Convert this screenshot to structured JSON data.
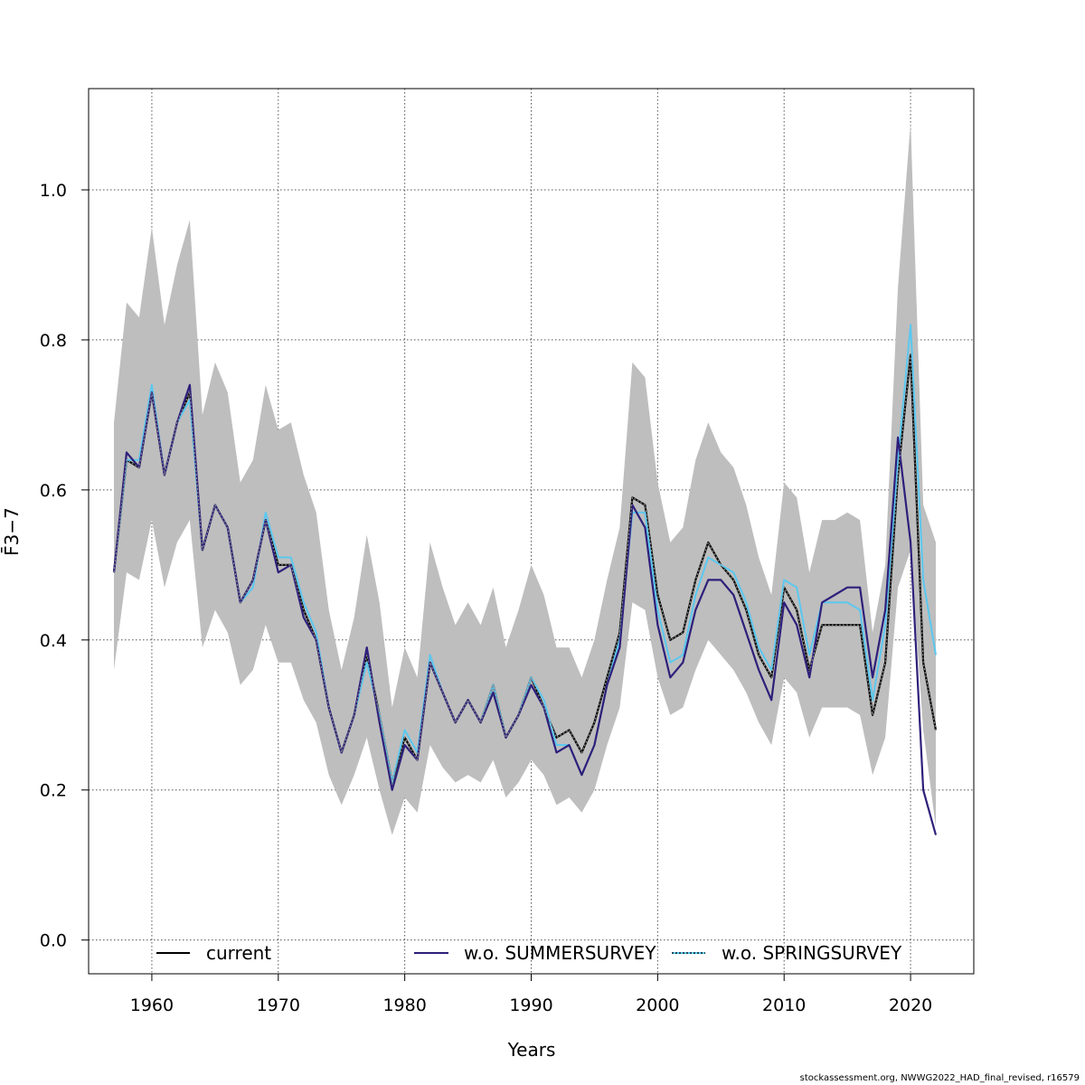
{
  "chart_data": {
    "type": "line",
    "xlabel": "Years",
    "ylabel": "F̄3−7",
    "xlim": [
      1955,
      2025
    ],
    "ylim": [
      -0.045,
      1.135
    ],
    "x_ticks": [
      1960,
      1970,
      1980,
      1990,
      2000,
      2010,
      2020
    ],
    "x_tick_labels": [
      "1960",
      "1970",
      "1980",
      "1990",
      "2000",
      "2010",
      "2020"
    ],
    "y_ticks": [
      0.0,
      0.2,
      0.4,
      0.6,
      0.8,
      1.0
    ],
    "y_tick_labels": [
      "0.0",
      "0.2",
      "0.4",
      "0.6",
      "0.8",
      "1.0"
    ],
    "grid": true,
    "legend_position": "bottom",
    "x": [
      1957,
      1958,
      1959,
      1960,
      1961,
      1962,
      1963,
      1964,
      1965,
      1966,
      1967,
      1968,
      1969,
      1970,
      1971,
      1972,
      1973,
      1974,
      1975,
      1976,
      1977,
      1978,
      1979,
      1980,
      1981,
      1982,
      1983,
      1984,
      1985,
      1986,
      1987,
      1988,
      1989,
      1990,
      1991,
      1992,
      1993,
      1994,
      1995,
      1996,
      1997,
      1998,
      1999,
      2000,
      2001,
      2002,
      2003,
      2004,
      2005,
      2006,
      2007,
      2008,
      2009,
      2010,
      2011,
      2012,
      2013,
      2014,
      2015,
      2016,
      2017,
      2018,
      2019,
      2020,
      2021,
      2022
    ],
    "band": {
      "fill": "#bebebe",
      "lower": [
        0.36,
        0.49,
        0.48,
        0.56,
        0.47,
        0.53,
        0.56,
        0.39,
        0.44,
        0.41,
        0.34,
        0.36,
        0.42,
        0.37,
        0.37,
        0.32,
        0.29,
        0.22,
        0.18,
        0.22,
        0.27,
        0.2,
        0.14,
        0.19,
        0.17,
        0.26,
        0.23,
        0.21,
        0.22,
        0.21,
        0.24,
        0.19,
        0.21,
        0.24,
        0.22,
        0.18,
        0.19,
        0.17,
        0.2,
        0.26,
        0.31,
        0.45,
        0.44,
        0.35,
        0.3,
        0.31,
        0.36,
        0.4,
        0.38,
        0.36,
        0.33,
        0.29,
        0.26,
        0.35,
        0.33,
        0.27,
        0.31,
        0.31,
        0.31,
        0.3,
        0.22,
        0.27,
        0.47,
        0.52,
        0.28,
        0.15
      ],
      "upper": [
        0.69,
        0.85,
        0.83,
        0.95,
        0.82,
        0.9,
        0.96,
        0.7,
        0.77,
        0.73,
        0.61,
        0.64,
        0.74,
        0.68,
        0.69,
        0.62,
        0.57,
        0.44,
        0.36,
        0.43,
        0.54,
        0.45,
        0.31,
        0.39,
        0.35,
        0.53,
        0.47,
        0.42,
        0.45,
        0.42,
        0.47,
        0.39,
        0.44,
        0.5,
        0.46,
        0.39,
        0.39,
        0.35,
        0.4,
        0.48,
        0.55,
        0.77,
        0.75,
        0.61,
        0.53,
        0.55,
        0.64,
        0.69,
        0.65,
        0.63,
        0.58,
        0.51,
        0.46,
        0.61,
        0.59,
        0.49,
        0.56,
        0.56,
        0.57,
        0.56,
        0.41,
        0.5,
        0.87,
        1.09,
        0.58,
        0.53
      ]
    },
    "series": [
      {
        "name": "current",
        "color": "#000000",
        "values": [
          0.49,
          0.64,
          0.63,
          0.73,
          0.62,
          0.69,
          0.73,
          0.52,
          0.58,
          0.55,
          0.45,
          0.48,
          0.56,
          0.5,
          0.5,
          0.44,
          0.4,
          0.31,
          0.25,
          0.3,
          0.38,
          0.3,
          0.21,
          0.27,
          0.24,
          0.37,
          0.33,
          0.29,
          0.32,
          0.29,
          0.34,
          0.27,
          0.3,
          0.35,
          0.31,
          0.27,
          0.28,
          0.25,
          0.29,
          0.35,
          0.41,
          0.59,
          0.58,
          0.46,
          0.4,
          0.41,
          0.48,
          0.53,
          0.5,
          0.48,
          0.44,
          0.38,
          0.35,
          0.47,
          0.44,
          0.36,
          0.42,
          0.42,
          0.42,
          0.42,
          0.3,
          0.37,
          0.62,
          0.78,
          0.37,
          0.28
        ]
      },
      {
        "name": "w.o. SUMMERSURVEY",
        "color": "#2e1f7a",
        "values": [
          0.49,
          0.65,
          0.63,
          0.73,
          0.62,
          0.69,
          0.74,
          0.52,
          0.58,
          0.55,
          0.45,
          0.48,
          0.56,
          0.49,
          0.5,
          0.43,
          0.4,
          0.31,
          0.25,
          0.3,
          0.39,
          0.29,
          0.2,
          0.26,
          0.24,
          0.37,
          0.33,
          0.29,
          0.32,
          0.29,
          0.33,
          0.27,
          0.3,
          0.34,
          0.31,
          0.25,
          0.26,
          0.22,
          0.26,
          0.34,
          0.39,
          0.58,
          0.55,
          0.42,
          0.35,
          0.37,
          0.44,
          0.48,
          0.48,
          0.46,
          0.41,
          0.36,
          0.32,
          0.45,
          0.42,
          0.35,
          0.45,
          0.46,
          0.47,
          0.47,
          0.35,
          0.44,
          0.67,
          0.53,
          0.2,
          0.14
        ]
      },
      {
        "name": "w.o. SPRINGSURVEY",
        "color": "#5bc8f0",
        "values": [
          0.49,
          0.64,
          0.64,
          0.74,
          0.62,
          0.69,
          0.72,
          0.52,
          0.58,
          0.55,
          0.45,
          0.47,
          0.57,
          0.51,
          0.51,
          0.45,
          0.41,
          0.31,
          0.25,
          0.3,
          0.37,
          0.3,
          0.21,
          0.28,
          0.25,
          0.38,
          0.33,
          0.29,
          0.32,
          0.29,
          0.34,
          0.27,
          0.3,
          0.35,
          0.32,
          0.26,
          0.26,
          0.22,
          0.26,
          0.34,
          0.4,
          0.57,
          0.57,
          0.44,
          0.37,
          0.38,
          0.46,
          0.51,
          0.5,
          0.49,
          0.45,
          0.39,
          0.36,
          0.48,
          0.47,
          0.38,
          0.45,
          0.45,
          0.45,
          0.44,
          0.32,
          0.42,
          0.64,
          0.82,
          0.48,
          0.38
        ]
      }
    ]
  },
  "legend": {
    "current": "current",
    "summer": "w.o. SUMMERSURVEY",
    "spring": "w.o. SPRINGSURVEY"
  },
  "footer": "stockassessment.org, NWWG2022_HAD_final_revised, r16579"
}
